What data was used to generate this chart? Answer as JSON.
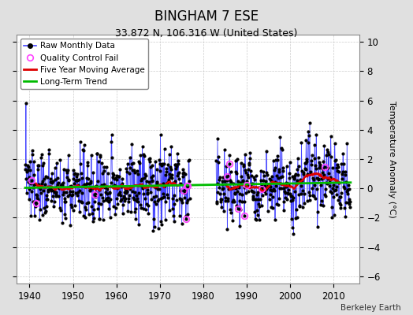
{
  "title": "BINGHAM 7 ESE",
  "subtitle": "33.872 N, 106.316 W (United States)",
  "watermark": "Berkeley Earth",
  "ylabel": "Temperature Anomaly (°C)",
  "xlim": [
    1937,
    2016
  ],
  "ylim": [
    -6.5,
    10.5
  ],
  "yticks": [
    -6,
    -4,
    -2,
    0,
    2,
    4,
    6,
    8,
    10
  ],
  "xticks": [
    1940,
    1950,
    1960,
    1970,
    1980,
    1990,
    2000,
    2010
  ],
  "raw_line_color": "#4444FF",
  "raw_marker_color": "#000000",
  "qc_fail_color": "#FF44FF",
  "moving_avg_color": "#DD0000",
  "trend_color": "#00BB00",
  "background_color": "#E0E0E0",
  "plot_background": "#FFFFFF",
  "grid_color": "#CCCCCC",
  "title_fontsize": 12,
  "subtitle_fontsize": 9,
  "axis_fontsize": 8,
  "tick_fontsize": 8.5
}
